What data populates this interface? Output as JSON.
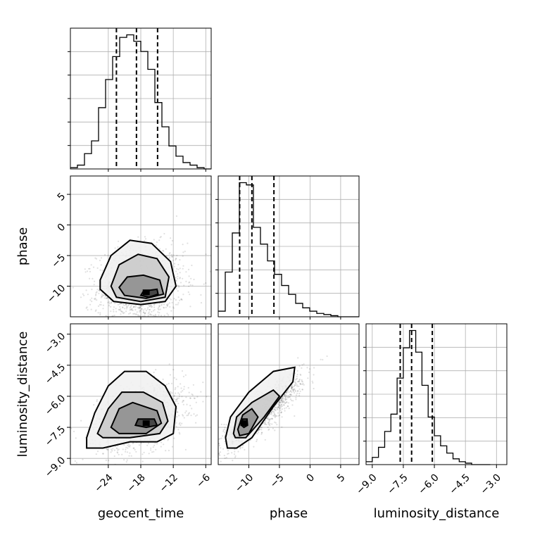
{
  "chart_data": {
    "type": "corner",
    "title": "",
    "parameters": [
      "geocent_time",
      "phase",
      "luminosity_distance"
    ],
    "grid": true,
    "axes": {
      "geocent_time": {
        "range": [
          -31,
          -5
        ],
        "ticks": [
          -24,
          -18,
          -12,
          -6
        ],
        "tick_labels": [
          "−24",
          "−18",
          "−12",
          "−6"
        ]
      },
      "phase": {
        "range": [
          -15,
          8
        ],
        "ticks": [
          -10,
          -5,
          0,
          5
        ],
        "tick_labels": [
          "−10",
          "−5",
          "0",
          "5"
        ]
      },
      "luminosity_distance": {
        "range": [
          -9.3,
          -2.5
        ],
        "ticks": [
          -9.0,
          -7.5,
          -6.0,
          -4.5,
          -3.0
        ],
        "tick_labels": [
          "−9.0",
          "−7.5",
          "−6.0",
          "−4.5",
          "−3.0"
        ]
      }
    },
    "marginals": [
      {
        "parameter": "geocent_time",
        "quantiles": [
          -22.5,
          -18.8,
          -14.9
        ],
        "bin_edges": [
          -31.0,
          -29.7,
          -28.4,
          -27.1,
          -25.8,
          -24.5,
          -23.2,
          -21.9,
          -20.6,
          -19.3,
          -18.0,
          -16.7,
          -15.4,
          -14.1,
          -12.8,
          -11.5,
          -10.2,
          -8.9,
          -7.6,
          -6.3,
          -5.0
        ],
        "counts": [
          1,
          3,
          12,
          22,
          48,
          70,
          88,
          103,
          105,
          100,
          92,
          78,
          52,
          33,
          18,
          10,
          5,
          3,
          1,
          0
        ]
      },
      {
        "parameter": "phase",
        "quantiles": [
          -11.5,
          -9.5,
          -5.9
        ],
        "bin_edges": [
          -15.0,
          -13.85,
          -12.7,
          -11.55,
          -10.4,
          -9.25,
          -8.1,
          -6.95,
          -5.8,
          -4.65,
          -3.5,
          -2.35,
          -1.2,
          -0.05,
          1.1,
          2.25,
          3.4,
          4.55,
          5.7,
          6.85,
          8.0
        ],
        "counts": [
          5,
          40,
          75,
          120,
          118,
          80,
          65,
          50,
          38,
          28,
          20,
          12,
          8,
          5,
          3,
          2,
          1,
          0,
          0,
          0
        ]
      },
      {
        "parameter": "luminosity_distance",
        "quantiles": [
          -7.65,
          -7.1,
          -6.1
        ],
        "bin_edges": [
          -9.3,
          -9.0,
          -8.7,
          -8.4,
          -8.1,
          -7.8,
          -7.5,
          -7.2,
          -6.9,
          -6.6,
          -6.3,
          -6.0,
          -5.7,
          -5.4,
          -5.1,
          -4.8,
          -4.5,
          -4.2,
          -3.9,
          -3.6,
          -3.3
        ],
        "counts": [
          2,
          5,
          12,
          23,
          35,
          60,
          81,
          93,
          78,
          55,
          33,
          20,
          13,
          8,
          4,
          2,
          1,
          0,
          0,
          0
        ]
      }
    ],
    "joints": [
      {
        "x": "geocent_time",
        "y": "phase",
        "mean": [
          -18.0,
          -10.0
        ],
        "spread": [
          4.0,
          3.2
        ],
        "correlation": 0.1,
        "peak": [
          -17.0,
          -11.0
        ],
        "contours": [
          [
            [
              -25.5,
              -9.0
            ],
            [
              -23.5,
              -5.0
            ],
            [
              -20.0,
              -2.5
            ],
            [
              -16.0,
              -3.0
            ],
            [
              -12.5,
              -6.0
            ],
            [
              -11.5,
              -10.0
            ],
            [
              -13.5,
              -12.5
            ],
            [
              -18.0,
              -13.0
            ],
            [
              -23.0,
              -12.5
            ],
            [
              -25.5,
              -10.5
            ]
          ],
          [
            [
              -23.5,
              -10.0
            ],
            [
              -22.0,
              -6.5
            ],
            [
              -18.5,
              -4.8
            ],
            [
              -15.0,
              -5.5
            ],
            [
              -12.8,
              -8.5
            ],
            [
              -13.5,
              -11.8
            ],
            [
              -18.0,
              -12.5
            ],
            [
              -22.5,
              -11.8
            ]
          ],
          [
            [
              -22.0,
              -10.2
            ],
            [
              -20.5,
              -8.5
            ],
            [
              -17.5,
              -8.2
            ],
            [
              -14.5,
              -9.0
            ],
            [
              -13.8,
              -11.3
            ],
            [
              -17.0,
              -12.0
            ],
            [
              -21.0,
              -11.5
            ]
          ],
          [
            [
              -18.0,
              -11.5
            ],
            [
              -17.5,
              -10.8
            ],
            [
              -15.0,
              -10.5
            ],
            [
              -14.8,
              -11.3
            ],
            [
              -16.5,
              -11.8
            ]
          ]
        ]
      },
      {
        "x": "geocent_time",
        "y": "luminosity_distance",
        "mean": [
          -18.0,
          -7.0
        ],
        "spread": [
          4.0,
          0.8
        ],
        "correlation": 0.35,
        "peak": [
          -17.0,
          -7.3
        ],
        "contours": [
          [
            [
              -28.0,
              -8.0
            ],
            [
              -26.5,
              -6.8
            ],
            [
              -24.0,
              -5.5
            ],
            [
              -21.0,
              -4.8
            ],
            [
              -17.0,
              -4.8
            ],
            [
              -13.5,
              -5.5
            ],
            [
              -11.5,
              -6.5
            ],
            [
              -12.0,
              -7.8
            ],
            [
              -15.0,
              -8.2
            ],
            [
              -20.0,
              -8.2
            ],
            [
              -25.0,
              -8.5
            ],
            [
              -28.0,
              -8.5
            ]
          ],
          [
            [
              -26.0,
              -7.8
            ],
            [
              -24.0,
              -6.6
            ],
            [
              -21.5,
              -5.8
            ],
            [
              -17.5,
              -5.8
            ],
            [
              -14.0,
              -6.3
            ],
            [
              -13.0,
              -7.2
            ],
            [
              -14.5,
              -7.8
            ],
            [
              -20.0,
              -8.0
            ],
            [
              -25.0,
              -8.0
            ]
          ],
          [
            [
              -23.5,
              -7.5
            ],
            [
              -22.0,
              -6.6
            ],
            [
              -19.5,
              -6.3
            ],
            [
              -15.0,
              -6.7
            ],
            [
              -14.2,
              -7.3
            ],
            [
              -17.0,
              -7.8
            ],
            [
              -22.0,
              -7.8
            ]
          ],
          [
            [
              -19.0,
              -7.4
            ],
            [
              -18.5,
              -7.1
            ],
            [
              -15.5,
              -7.1
            ],
            [
              -15.0,
              -7.4
            ],
            [
              -17.0,
              -7.5
            ]
          ]
        ]
      },
      {
        "x": "phase",
        "y": "luminosity_distance",
        "mean": [
          -8.0,
          -6.8
        ],
        "spread": [
          3.3,
          0.9
        ],
        "correlation": 0.88,
        "peak": [
          -10.8,
          -7.3
        ],
        "contours": [
          [
            [
              -13.8,
              -8.0
            ],
            [
              -13.0,
              -7.0
            ],
            [
              -10.0,
              -5.8
            ],
            [
              -6.0,
              -4.8
            ],
            [
              -2.5,
              -4.6
            ],
            [
              -2.8,
              -5.3
            ],
            [
              -6.0,
              -6.5
            ],
            [
              -9.5,
              -8.0
            ],
            [
              -12.0,
              -8.5
            ],
            [
              -13.5,
              -8.5
            ]
          ],
          [
            [
              -12.5,
              -7.8
            ],
            [
              -12.0,
              -7.0
            ],
            [
              -9.5,
              -6.3
            ],
            [
              -6.0,
              -5.7
            ],
            [
              -5.0,
              -6.0
            ],
            [
              -7.5,
              -7.0
            ],
            [
              -10.5,
              -8.0
            ],
            [
              -12.2,
              -8.0
            ]
          ],
          [
            [
              -11.8,
              -7.6
            ],
            [
              -11.0,
              -6.9
            ],
            [
              -9.5,
              -6.6
            ],
            [
              -8.5,
              -7.0
            ],
            [
              -10.0,
              -7.8
            ],
            [
              -11.5,
              -7.9
            ]
          ],
          [
            [
              -11.2,
              -7.4
            ],
            [
              -11.0,
              -7.1
            ],
            [
              -10.3,
              -7.1
            ],
            [
              -10.2,
              -7.4
            ],
            [
              -10.8,
              -7.5
            ]
          ]
        ]
      }
    ]
  }
}
